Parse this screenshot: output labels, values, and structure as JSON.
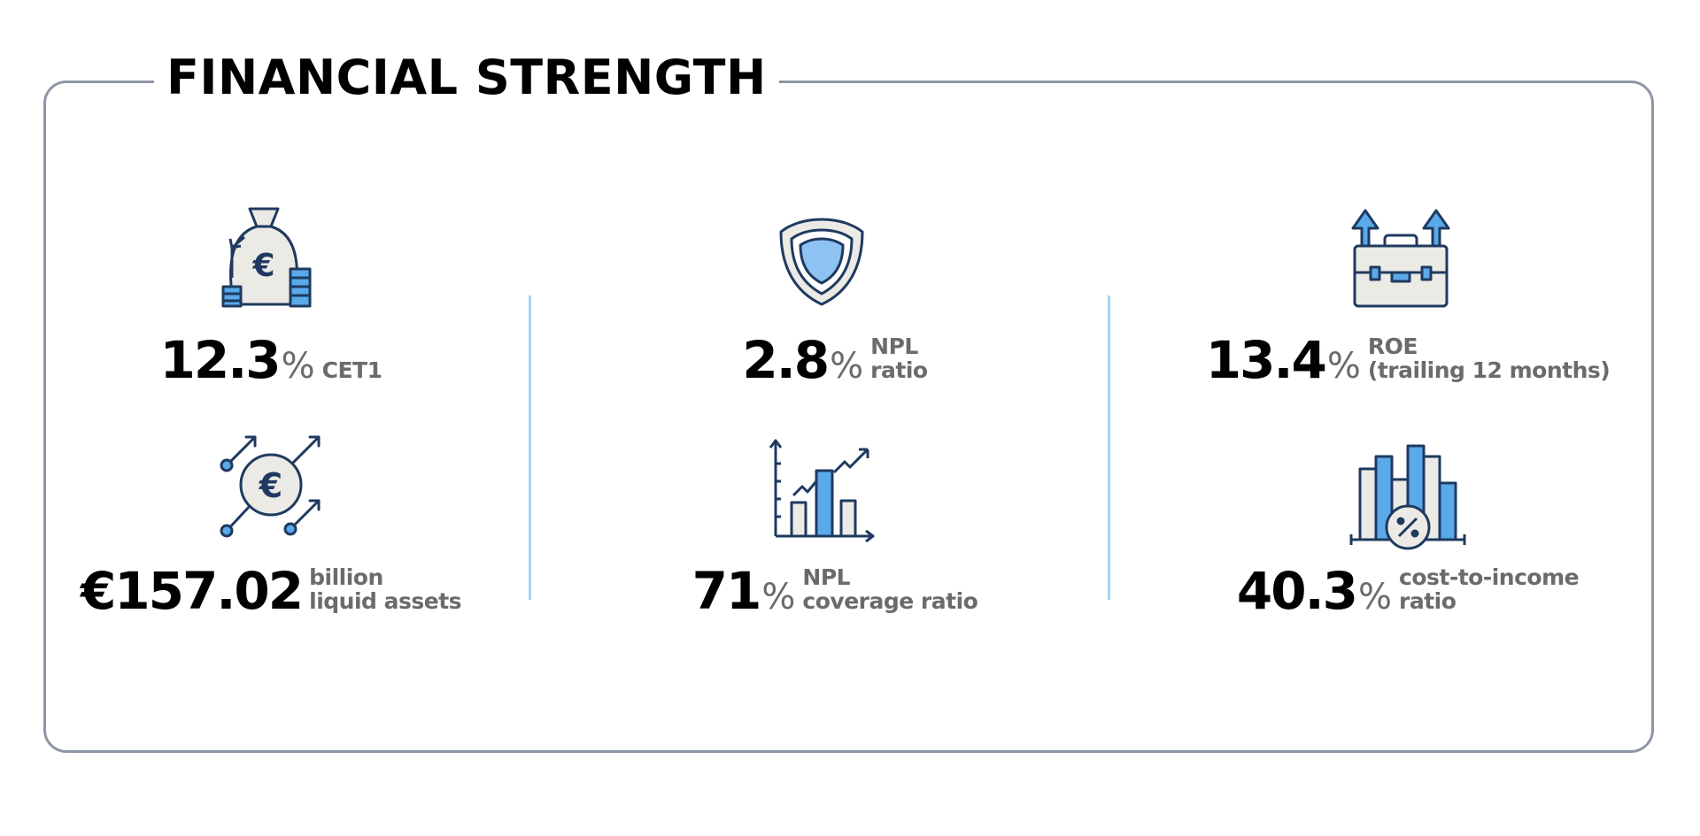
{
  "title": "FINANCIAL STRENGTH",
  "metrics": [
    {
      "value": "12.3",
      "unit": "%",
      "label": [
        "CET1"
      ]
    },
    {
      "value": "€157.02",
      "label": [
        "billion",
        "liquid assets"
      ]
    },
    {
      "value": "2.8",
      "unit": "%",
      "label": [
        "NPL",
        "ratio"
      ]
    },
    {
      "value": "71",
      "unit": "%",
      "label": [
        "NPL",
        "coverage ratio"
      ]
    },
    {
      "value": "13.4",
      "unit": "%",
      "label": [
        "ROE",
        "(trailing 12 months)"
      ]
    },
    {
      "value": "40.3",
      "unit": "%",
      "label": [
        "cost-to-income",
        "ratio"
      ]
    }
  ]
}
